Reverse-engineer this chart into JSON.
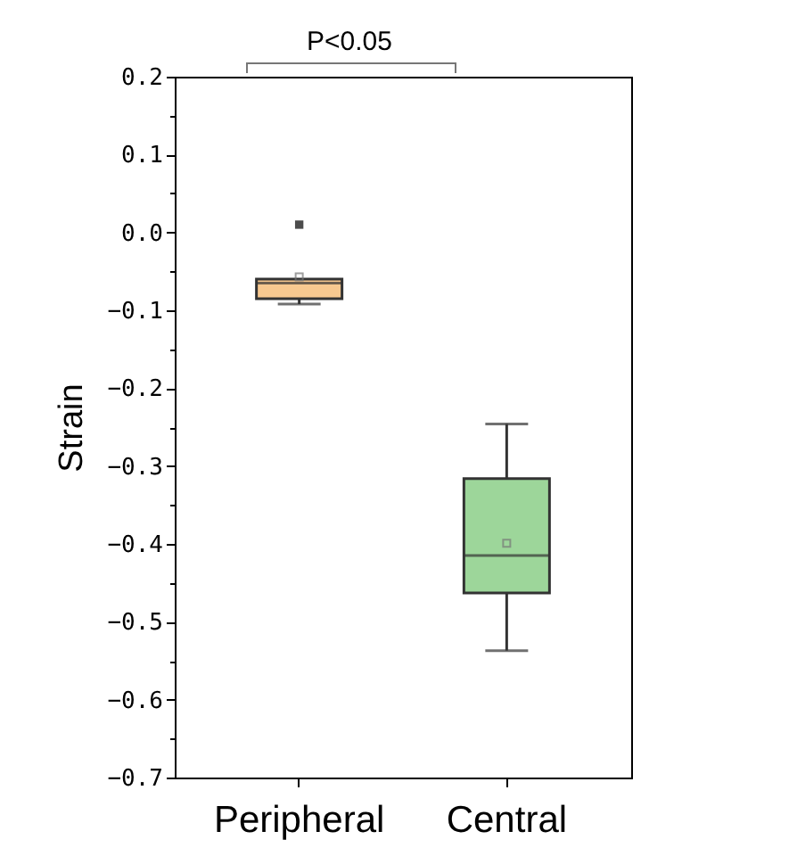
{
  "chart_data": {
    "type": "box",
    "ylabel": "Strain",
    "categories": [
      "Peripheral",
      "Central"
    ],
    "colors": [
      "#f8c990",
      "#9dd69a"
    ],
    "boxes": [
      {
        "low": -0.092,
        "q1": -0.085,
        "median": -0.065,
        "q3": -0.06,
        "high": -0.06,
        "mean": -0.057,
        "outliers": [
          0.01
        ]
      },
      {
        "low": -0.537,
        "q1": -0.463,
        "median": -0.415,
        "q3": -0.316,
        "high": -0.246,
        "mean": -0.399
      }
    ],
    "ylim": [
      -0.7,
      0.2
    ],
    "yticks": [
      {
        "value": -0.7,
        "label": "−0.7"
      },
      {
        "value": -0.65,
        "label": null
      },
      {
        "value": -0.6,
        "label": "−0.6"
      },
      {
        "value": -0.55,
        "label": null
      },
      {
        "value": -0.5,
        "label": "−0.5"
      },
      {
        "value": -0.45,
        "label": null
      },
      {
        "value": -0.4,
        "label": "−0.4"
      },
      {
        "value": -0.35,
        "label": null
      },
      {
        "value": -0.3,
        "label": "−0.3"
      },
      {
        "value": -0.25,
        "label": null
      },
      {
        "value": -0.2,
        "label": "−0.2"
      },
      {
        "value": -0.15,
        "label": null
      },
      {
        "value": -0.1,
        "label": "−0.1"
      },
      {
        "value": -0.05,
        "label": null
      },
      {
        "value": 0.0,
        "label": "0.0"
      },
      {
        "value": 0.05,
        "label": null
      },
      {
        "value": 0.1,
        "label": "0.1"
      },
      {
        "value": 0.15,
        "label": null
      },
      {
        "value": 0.2,
        "label": "0.2"
      }
    ],
    "annotations": [
      "P<0.05"
    ],
    "grid": false
  }
}
